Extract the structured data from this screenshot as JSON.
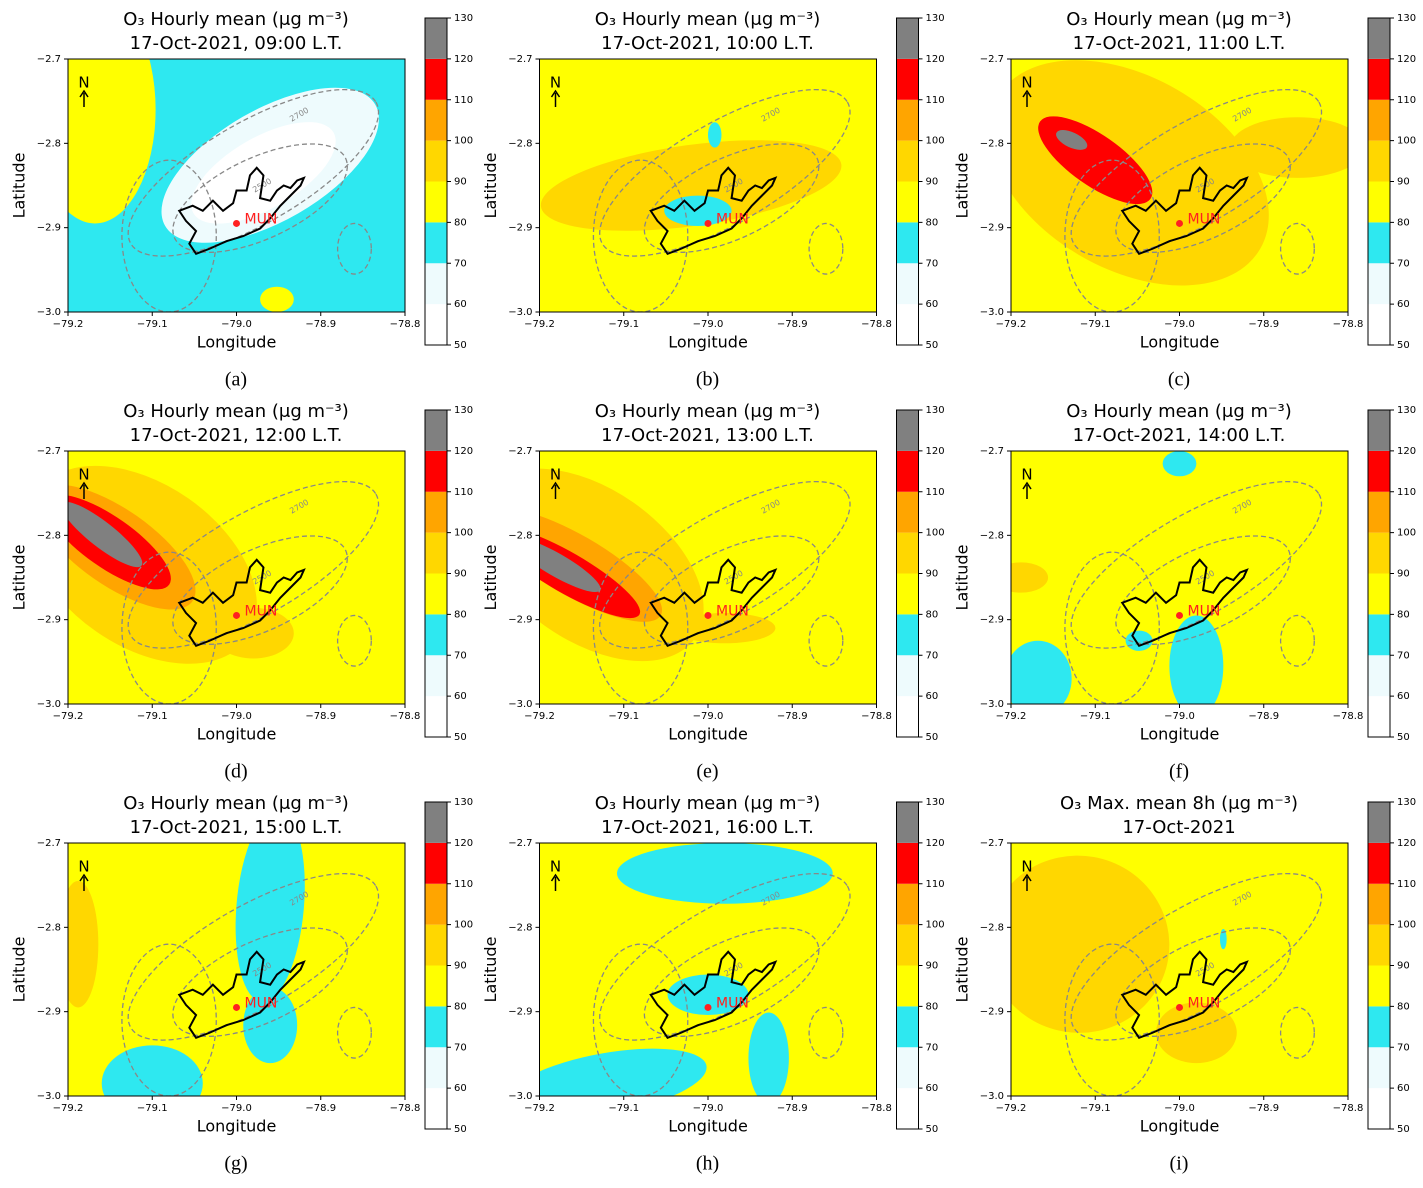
{
  "chart_data": [
    {
      "type": "contour",
      "title": [
        "O₃ Hourly mean (μg m⁻³)",
        "17-Oct-2021, 09:00 L.T."
      ],
      "panel_label": "(a)",
      "xlabel": "Longitude",
      "ylabel": "Latitude",
      "xlim": [
        -79.2,
        -78.8
      ],
      "xticks": [
        {
          "value": -79.2,
          "label": "−79.2"
        },
        {
          "value": -79.1,
          "label": "−79.1"
        },
        {
          "value": -79.0,
          "label": "−79.0"
        },
        {
          "value": -78.9,
          "label": "−78.9"
        },
        {
          "value": -78.8,
          "label": "−78.8"
        }
      ],
      "ylim": [
        -3.0,
        -2.7
      ],
      "yticks": [
        {
          "value": -2.7,
          "label": "−2.7"
        },
        {
          "value": -2.8,
          "label": "−2.8"
        },
        {
          "value": -2.9,
          "label": "−2.9"
        },
        {
          "value": -3.0,
          "label": "−3.0"
        }
      ],
      "clim": [
        50,
        130
      ],
      "levels": [
        50,
        60,
        70,
        80,
        90,
        100,
        110,
        120,
        130
      ],
      "colors": [
        "#ffffff",
        "#eefbfd",
        "#2ee8f0",
        "#ffff00",
        "#ffd700",
        "#ffa500",
        "#ff0000",
        "#808080"
      ],
      "north": "N",
      "contour_labels": [
        "2700",
        "2500"
      ],
      "site": {
        "label": "MUN",
        "x": -79.0,
        "y": -2.895,
        "color": "#ff2020"
      }
    },
    {
      "type": "contour",
      "title": [
        "O₃ Hourly mean (μg m⁻³)",
        "17-Oct-2021, 10:00 L.T."
      ],
      "panel_label": "(b)",
      "xlabel": "Longitude",
      "ylabel": "Latitude",
      "xlim": [
        -79.2,
        -78.8
      ],
      "xticks": [
        {
          "value": -79.2,
          "label": "−79.2"
        },
        {
          "value": -79.1,
          "label": "−79.1"
        },
        {
          "value": -79.0,
          "label": "−79.0"
        },
        {
          "value": -78.9,
          "label": "−78.9"
        },
        {
          "value": -78.8,
          "label": "−78.8"
        }
      ],
      "ylim": [
        -3.0,
        -2.7
      ],
      "yticks": [
        {
          "value": -2.7,
          "label": "−2.7"
        },
        {
          "value": -2.8,
          "label": "−2.8"
        },
        {
          "value": -2.9,
          "label": "−2.9"
        },
        {
          "value": -3.0,
          "label": "−3.0"
        }
      ],
      "clim": [
        50,
        130
      ],
      "levels": [
        50,
        60,
        70,
        80,
        90,
        100,
        110,
        120,
        130
      ],
      "colors": [
        "#ffffff",
        "#eefbfd",
        "#2ee8f0",
        "#ffff00",
        "#ffd700",
        "#ffa500",
        "#ff0000",
        "#808080"
      ],
      "north": "N",
      "contour_labels": [
        "2700",
        "2500"
      ],
      "site": {
        "label": "MUN",
        "x": -79.0,
        "y": -2.895,
        "color": "#ff2020"
      }
    },
    {
      "type": "contour",
      "title": [
        "O₃ Hourly mean (μg m⁻³)",
        "17-Oct-2021, 11:00 L.T."
      ],
      "panel_label": "(c)",
      "xlabel": "Longitude",
      "ylabel": "Latitude",
      "xlim": [
        -79.2,
        -78.8
      ],
      "xticks": [
        {
          "value": -79.2,
          "label": "−79.2"
        },
        {
          "value": -79.1,
          "label": "−79.1"
        },
        {
          "value": -79.0,
          "label": "−79.0"
        },
        {
          "value": -78.9,
          "label": "−78.9"
        },
        {
          "value": -78.8,
          "label": "−78.8"
        }
      ],
      "ylim": [
        -3.0,
        -2.7
      ],
      "yticks": [
        {
          "value": -2.7,
          "label": "−2.7"
        },
        {
          "value": -2.8,
          "label": "−2.8"
        },
        {
          "value": -2.9,
          "label": "−2.9"
        },
        {
          "value": -3.0,
          "label": "−3.0"
        }
      ],
      "clim": [
        50,
        130
      ],
      "levels": [
        50,
        60,
        70,
        80,
        90,
        100,
        110,
        120,
        130
      ],
      "colors": [
        "#ffffff",
        "#eefbfd",
        "#2ee8f0",
        "#ffff00",
        "#ffd700",
        "#ffa500",
        "#ff0000",
        "#808080"
      ],
      "north": "N",
      "contour_labels": [
        "2700",
        "2500"
      ],
      "site": {
        "label": "MUN",
        "x": -79.0,
        "y": -2.895,
        "color": "#ff2020"
      }
    },
    {
      "type": "contour",
      "title": [
        "O₃ Hourly mean (μg m⁻³)",
        "17-Oct-2021, 12:00 L.T."
      ],
      "panel_label": "(d)",
      "xlabel": "Longitude",
      "ylabel": "Latitude",
      "xlim": [
        -79.2,
        -78.8
      ],
      "xticks": [
        {
          "value": -79.2,
          "label": "−79.2"
        },
        {
          "value": -79.1,
          "label": "−79.1"
        },
        {
          "value": -79.0,
          "label": "−79.0"
        },
        {
          "value": -78.9,
          "label": "−78.9"
        },
        {
          "value": -78.8,
          "label": "−78.8"
        }
      ],
      "ylim": [
        -3.0,
        -2.7
      ],
      "yticks": [
        {
          "value": -2.7,
          "label": "−2.7"
        },
        {
          "value": -2.8,
          "label": "−2.8"
        },
        {
          "value": -2.9,
          "label": "−2.9"
        },
        {
          "value": -3.0,
          "label": "−3.0"
        }
      ],
      "clim": [
        50,
        130
      ],
      "levels": [
        50,
        60,
        70,
        80,
        90,
        100,
        110,
        120,
        130
      ],
      "colors": [
        "#ffffff",
        "#eefbfd",
        "#2ee8f0",
        "#ffff00",
        "#ffd700",
        "#ffa500",
        "#ff0000",
        "#808080"
      ],
      "north": "N",
      "contour_labels": [
        "2700",
        "2500"
      ],
      "site": {
        "label": "MUN",
        "x": -79.0,
        "y": -2.895,
        "color": "#ff2020"
      }
    },
    {
      "type": "contour",
      "title": [
        "O₃ Hourly mean (μg m⁻³)",
        "17-Oct-2021, 13:00 L.T."
      ],
      "panel_label": "(e)",
      "xlabel": "Longitude",
      "ylabel": "Latitude",
      "xlim": [
        -79.2,
        -78.8
      ],
      "xticks": [
        {
          "value": -79.2,
          "label": "−79.2"
        },
        {
          "value": -79.1,
          "label": "−79.1"
        },
        {
          "value": -79.0,
          "label": "−79.0"
        },
        {
          "value": -78.9,
          "label": "−78.9"
        },
        {
          "value": -78.8,
          "label": "−78.8"
        }
      ],
      "ylim": [
        -3.0,
        -2.7
      ],
      "yticks": [
        {
          "value": -2.7,
          "label": "−2.7"
        },
        {
          "value": -2.8,
          "label": "−2.8"
        },
        {
          "value": -2.9,
          "label": "−2.9"
        },
        {
          "value": -3.0,
          "label": "−3.0"
        }
      ],
      "clim": [
        50,
        130
      ],
      "levels": [
        50,
        60,
        70,
        80,
        90,
        100,
        110,
        120,
        130
      ],
      "colors": [
        "#ffffff",
        "#eefbfd",
        "#2ee8f0",
        "#ffff00",
        "#ffd700",
        "#ffa500",
        "#ff0000",
        "#808080"
      ],
      "north": "N",
      "contour_labels": [
        "2700",
        "2500"
      ],
      "site": {
        "label": "MUN",
        "x": -79.0,
        "y": -2.895,
        "color": "#ff2020"
      }
    },
    {
      "type": "contour",
      "title": [
        "O₃ Hourly mean (μg m⁻³)",
        "17-Oct-2021, 14:00 L.T."
      ],
      "panel_label": "(f)",
      "xlabel": "Longitude",
      "ylabel": "Latitude",
      "xlim": [
        -79.2,
        -78.8
      ],
      "xticks": [
        {
          "value": -79.2,
          "label": "−79.2"
        },
        {
          "value": -79.1,
          "label": "−79.1"
        },
        {
          "value": -79.0,
          "label": "−79.0"
        },
        {
          "value": -78.9,
          "label": "−78.9"
        },
        {
          "value": -78.8,
          "label": "−78.8"
        }
      ],
      "ylim": [
        -3.0,
        -2.7
      ],
      "yticks": [
        {
          "value": -2.7,
          "label": "−2.7"
        },
        {
          "value": -2.8,
          "label": "−2.8"
        },
        {
          "value": -2.9,
          "label": "−2.9"
        },
        {
          "value": -3.0,
          "label": "−3.0"
        }
      ],
      "clim": [
        50,
        130
      ],
      "levels": [
        50,
        60,
        70,
        80,
        90,
        100,
        110,
        120,
        130
      ],
      "colors": [
        "#ffffff",
        "#eefbfd",
        "#2ee8f0",
        "#ffff00",
        "#ffd700",
        "#ffa500",
        "#ff0000",
        "#808080"
      ],
      "north": "N",
      "contour_labels": [
        "2700",
        "2500"
      ],
      "site": {
        "label": "MUN",
        "x": -79.0,
        "y": -2.895,
        "color": "#ff2020"
      }
    },
    {
      "type": "contour",
      "title": [
        "O₃ Hourly mean (μg m⁻³)",
        "17-Oct-2021, 15:00 L.T."
      ],
      "panel_label": "(g)",
      "xlabel": "Longitude",
      "ylabel": "Latitude",
      "xlim": [
        -79.2,
        -78.8
      ],
      "xticks": [
        {
          "value": -79.2,
          "label": "−79.2"
        },
        {
          "value": -79.1,
          "label": "−79.1"
        },
        {
          "value": -79.0,
          "label": "−79.0"
        },
        {
          "value": -78.9,
          "label": "−78.9"
        },
        {
          "value": -78.8,
          "label": "−78.8"
        }
      ],
      "ylim": [
        -3.0,
        -2.7
      ],
      "yticks": [
        {
          "value": -2.7,
          "label": "−2.7"
        },
        {
          "value": -2.8,
          "label": "−2.8"
        },
        {
          "value": -2.9,
          "label": "−2.9"
        },
        {
          "value": -3.0,
          "label": "−3.0"
        }
      ],
      "clim": [
        50,
        130
      ],
      "levels": [
        50,
        60,
        70,
        80,
        90,
        100,
        110,
        120,
        130
      ],
      "colors": [
        "#ffffff",
        "#eefbfd",
        "#2ee8f0",
        "#ffff00",
        "#ffd700",
        "#ffa500",
        "#ff0000",
        "#808080"
      ],
      "north": "N",
      "contour_labels": [
        "2700",
        "2500"
      ],
      "site": {
        "label": "MUN",
        "x": -79.0,
        "y": -2.895,
        "color": "#ff2020"
      }
    },
    {
      "type": "contour",
      "title": [
        "O₃ Hourly mean (μg m⁻³)",
        "17-Oct-2021, 16:00 L.T."
      ],
      "panel_label": "(h)",
      "xlabel": "Longitude",
      "ylabel": "Latitude",
      "xlim": [
        -79.2,
        -78.8
      ],
      "xticks": [
        {
          "value": -79.2,
          "label": "−79.2"
        },
        {
          "value": -79.1,
          "label": "−79.1"
        },
        {
          "value": -79.0,
          "label": "−79.0"
        },
        {
          "value": -78.9,
          "label": "−78.9"
        },
        {
          "value": -78.8,
          "label": "−78.8"
        }
      ],
      "ylim": [
        -3.0,
        -2.7
      ],
      "yticks": [
        {
          "value": -2.7,
          "label": "−2.7"
        },
        {
          "value": -2.8,
          "label": "−2.8"
        },
        {
          "value": -2.9,
          "label": "−2.9"
        },
        {
          "value": -3.0,
          "label": "−3.0"
        }
      ],
      "clim": [
        50,
        130
      ],
      "levels": [
        50,
        60,
        70,
        80,
        90,
        100,
        110,
        120,
        130
      ],
      "colors": [
        "#ffffff",
        "#eefbfd",
        "#2ee8f0",
        "#ffff00",
        "#ffd700",
        "#ffa500",
        "#ff0000",
        "#808080"
      ],
      "north": "N",
      "contour_labels": [
        "2700",
        "2500"
      ],
      "site": {
        "label": "MUN",
        "x": -79.0,
        "y": -2.895,
        "color": "#ff2020"
      }
    },
    {
      "type": "contour",
      "title": [
        "O₃ Max. mean 8h (μg m⁻³)",
        "17-Oct-2021"
      ],
      "panel_label": "(i)",
      "xlabel": "Longitude",
      "ylabel": "Latitude",
      "xlim": [
        -79.2,
        -78.8
      ],
      "xticks": [
        {
          "value": -79.2,
          "label": "−79.2"
        },
        {
          "value": -79.1,
          "label": "−79.1"
        },
        {
          "value": -79.0,
          "label": "−79.0"
        },
        {
          "value": -78.9,
          "label": "−78.9"
        },
        {
          "value": -78.8,
          "label": "−78.8"
        }
      ],
      "ylim": [
        -3.0,
        -2.7
      ],
      "yticks": [
        {
          "value": -2.7,
          "label": "−2.7"
        },
        {
          "value": -2.8,
          "label": "−2.8"
        },
        {
          "value": -2.9,
          "label": "−2.9"
        },
        {
          "value": -3.0,
          "label": "−3.0"
        }
      ],
      "clim": [
        50,
        130
      ],
      "levels": [
        50,
        60,
        70,
        80,
        90,
        100,
        110,
        120,
        130
      ],
      "colors": [
        "#ffffff",
        "#eefbfd",
        "#2ee8f0",
        "#ffff00",
        "#ffd700",
        "#ffa500",
        "#ff0000",
        "#808080"
      ],
      "north": "N",
      "contour_labels": [
        "2700",
        "2500"
      ],
      "site": {
        "label": "MUN",
        "x": -79.0,
        "y": -2.895,
        "color": "#ff2020"
      }
    }
  ]
}
